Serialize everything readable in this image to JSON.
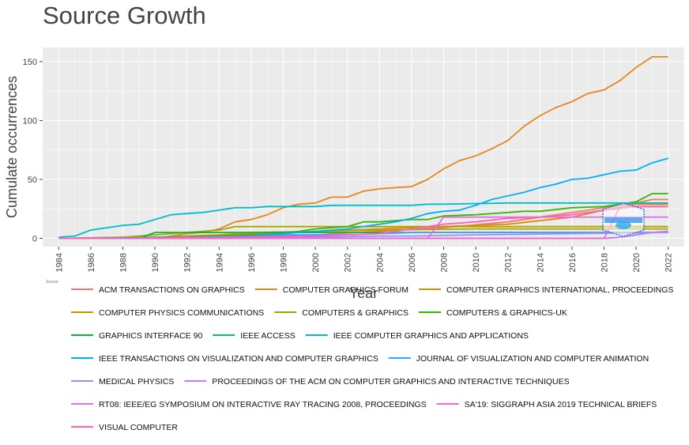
{
  "title": "Source Growth",
  "source_label": "Source",
  "chart_data": {
    "type": "line",
    "title": "Source Growth",
    "xlabel": "Year",
    "ylabel": "Cumulate occurrences",
    "xlim": [
      1983,
      2023
    ],
    "ylim": [
      -7,
      162
    ],
    "x_ticks": [
      "1984",
      "1986",
      "1988",
      "1990",
      "1992",
      "1994",
      "1996",
      "1998",
      "2000",
      "2002",
      "2004",
      "2006",
      "2008",
      "2010",
      "2012",
      "2014",
      "2016",
      "2018",
      "2020",
      "2022"
    ],
    "y_ticks": [
      "0",
      "50",
      "100",
      "150"
    ],
    "grid": true,
    "legend_position": "bottom",
    "series": [
      {
        "name": "ACM TRANSACTIONS ON GRAPHICS",
        "color": "#F8766D",
        "points": [
          [
            1984,
            0
          ],
          [
            1988,
            1
          ],
          [
            1992,
            1
          ],
          [
            1996,
            2
          ],
          [
            2000,
            3
          ],
          [
            2004,
            6
          ],
          [
            2008,
            9
          ],
          [
            2012,
            14
          ],
          [
            2016,
            22
          ],
          [
            2018,
            26
          ],
          [
            2020,
            30
          ],
          [
            2021,
            33
          ],
          [
            2022,
            33
          ]
        ]
      },
      {
        "name": "COMPUTER GRAPHICS FORUM",
        "color": "#E7861B",
        "points": [
          [
            1984,
            0
          ],
          [
            1988,
            0
          ],
          [
            1990,
            0
          ],
          [
            1991,
            2
          ],
          [
            1992,
            4
          ],
          [
            1993,
            5
          ],
          [
            1994,
            8
          ],
          [
            1995,
            14
          ],
          [
            1996,
            16
          ],
          [
            1997,
            20
          ],
          [
            1998,
            26
          ],
          [
            1999,
            29
          ],
          [
            2000,
            30
          ],
          [
            2001,
            35
          ],
          [
            2002,
            35
          ],
          [
            2003,
            40
          ],
          [
            2004,
            42
          ],
          [
            2005,
            43
          ],
          [
            2006,
            44
          ],
          [
            2007,
            50
          ],
          [
            2008,
            59
          ],
          [
            2009,
            66
          ],
          [
            2010,
            70
          ],
          [
            2011,
            76
          ],
          [
            2012,
            83
          ],
          [
            2013,
            95
          ],
          [
            2014,
            104
          ],
          [
            2015,
            111
          ],
          [
            2016,
            116
          ],
          [
            2017,
            123
          ],
          [
            2018,
            126
          ],
          [
            2019,
            134
          ],
          [
            2020,
            145
          ],
          [
            2021,
            154
          ],
          [
            2022,
            154
          ]
        ]
      },
      {
        "name": "COMPUTER GRAPHICS INTERNATIONAL, PROCEEDINGS",
        "color": "#DB8E00",
        "points": [
          [
            1984,
            0
          ],
          [
            1992,
            0
          ],
          [
            1993,
            0
          ],
          [
            1994,
            2
          ],
          [
            1996,
            4
          ],
          [
            2000,
            6
          ],
          [
            2004,
            8
          ],
          [
            2008,
            10
          ],
          [
            2012,
            12
          ],
          [
            2016,
            18
          ],
          [
            2018,
            24
          ],
          [
            2020,
            29
          ],
          [
            2022,
            29
          ]
        ]
      },
      {
        "name": "COMPUTER PHYSICS COMMUNICATIONS",
        "color": "#BE9C00",
        "points": [
          [
            1984,
            0
          ],
          [
            1990,
            1
          ],
          [
            1994,
            3
          ],
          [
            1996,
            5
          ],
          [
            2000,
            6
          ],
          [
            2004,
            7
          ],
          [
            2010,
            8
          ],
          [
            2022,
            8
          ]
        ]
      },
      {
        "name": "COMPUTERS & GRAPHICS",
        "color": "#A3A500",
        "points": [
          [
            1984,
            0
          ],
          [
            1988,
            1
          ],
          [
            1990,
            3
          ],
          [
            1992,
            5
          ],
          [
            1994,
            7
          ],
          [
            1995,
            10
          ],
          [
            1998,
            10
          ],
          [
            2004,
            10
          ],
          [
            2010,
            10
          ],
          [
            2016,
            10
          ],
          [
            2022,
            10
          ]
        ]
      },
      {
        "name": "COMPUTERS & GRAPHICS-UK",
        "color": "#39B600",
        "points": [
          [
            1984,
            0
          ],
          [
            1988,
            0
          ],
          [
            1990,
            1
          ],
          [
            1994,
            2
          ],
          [
            1998,
            4
          ],
          [
            2000,
            8
          ],
          [
            2002,
            10
          ],
          [
            2003,
            14
          ],
          [
            2004,
            14
          ],
          [
            2006,
            16
          ],
          [
            2007,
            16
          ],
          [
            2008,
            19
          ],
          [
            2010,
            20
          ],
          [
            2012,
            22
          ],
          [
            2013,
            23
          ],
          [
            2014,
            23
          ],
          [
            2016,
            26
          ],
          [
            2018,
            27
          ],
          [
            2019,
            29
          ],
          [
            2020,
            31
          ],
          [
            2021,
            38
          ],
          [
            2022,
            38
          ]
        ]
      },
      {
        "name": "GRAPHICS INTERFACE 90",
        "color": "#00BA38",
        "points": [
          [
            1984,
            0
          ],
          [
            1989,
            0
          ],
          [
            1990,
            5
          ],
          [
            1992,
            5
          ],
          [
            2000,
            5
          ],
          [
            2010,
            5
          ],
          [
            2022,
            5
          ]
        ]
      },
      {
        "name": "IEEE ACCESS",
        "color": "#00BF7D",
        "points": [
          [
            1984,
            0
          ],
          [
            2016,
            0
          ],
          [
            2017,
            0
          ],
          [
            2018,
            0
          ],
          [
            2019,
            1
          ],
          [
            2020,
            3
          ],
          [
            2021,
            5
          ],
          [
            2022,
            6
          ]
        ]
      },
      {
        "name": "IEEE COMPUTER GRAPHICS AND APPLICATIONS",
        "color": "#00BFC4",
        "points": [
          [
            1984,
            1
          ],
          [
            1985,
            2
          ],
          [
            1986,
            7
          ],
          [
            1987,
            9
          ],
          [
            1988,
            11
          ],
          [
            1989,
            12
          ],
          [
            1990,
            16
          ],
          [
            1991,
            20
          ],
          [
            1992,
            21
          ],
          [
            1993,
            22
          ],
          [
            1994,
            24
          ],
          [
            1995,
            26
          ],
          [
            1996,
            26
          ],
          [
            1997,
            27
          ],
          [
            1998,
            27
          ],
          [
            1999,
            27
          ],
          [
            2000,
            27
          ],
          [
            2001,
            28
          ],
          [
            2002,
            28
          ],
          [
            2006,
            28
          ],
          [
            2007,
            29
          ],
          [
            2008,
            29
          ],
          [
            2012,
            30
          ],
          [
            2016,
            30
          ],
          [
            2020,
            30
          ],
          [
            2022,
            30
          ]
        ]
      },
      {
        "name": "IEEE TRANSACTIONS ON VISUALIZATION AND COMPUTER GRAPHICS",
        "color": "#00B0F6",
        "points": [
          [
            1984,
            0
          ],
          [
            1992,
            1
          ],
          [
            1996,
            2
          ],
          [
            1998,
            4
          ],
          [
            2000,
            6
          ],
          [
            2002,
            8
          ],
          [
            2004,
            12
          ],
          [
            2005,
            14
          ],
          [
            2006,
            17
          ],
          [
            2007,
            21
          ],
          [
            2008,
            23
          ],
          [
            2009,
            24
          ],
          [
            2010,
            28
          ],
          [
            2011,
            33
          ],
          [
            2012,
            36
          ],
          [
            2013,
            39
          ],
          [
            2014,
            43
          ],
          [
            2015,
            46
          ],
          [
            2016,
            50
          ],
          [
            2017,
            51
          ],
          [
            2018,
            54
          ],
          [
            2019,
            57
          ],
          [
            2020,
            58
          ],
          [
            2021,
            64
          ],
          [
            2022,
            68
          ]
        ]
      },
      {
        "name": "JOURNAL OF VISUALIZATION AND COMPUTER ANIMATION",
        "color": "#35A2FF",
        "points": [
          [
            1984,
            0
          ],
          [
            1990,
            0
          ],
          [
            1994,
            1
          ],
          [
            1998,
            3
          ],
          [
            2000,
            3
          ],
          [
            2002,
            3
          ],
          [
            2004,
            4
          ],
          [
            2006,
            5
          ],
          [
            2010,
            5
          ],
          [
            2016,
            5
          ],
          [
            2022,
            5
          ]
        ]
      },
      {
        "name": "MEDICAL PHYSICS",
        "color": "#9590FF",
        "points": [
          [
            1984,
            0
          ],
          [
            1996,
            0
          ],
          [
            2004,
            2
          ],
          [
            2006,
            2
          ],
          [
            2010,
            3
          ],
          [
            2016,
            4
          ],
          [
            2022,
            5
          ]
        ]
      },
      {
        "name": "PROCEEDINGS OF THE ACM ON COMPUTER GRAPHICS AND INTERACTIVE TECHNIQUES",
        "color": "#C77CFF",
        "points": [
          [
            1984,
            0
          ],
          [
            2010,
            0
          ],
          [
            2016,
            0
          ],
          [
            2017,
            0
          ],
          [
            2018,
            0
          ],
          [
            2019,
            1
          ],
          [
            2020,
            3
          ],
          [
            2021,
            5
          ],
          [
            2022,
            6
          ]
        ]
      },
      {
        "name": "RT08: IEEE/EG SYMPOSIUM ON INTERACTIVE RAY TRACING 2008, PROCEEDINGS",
        "color": "#E76BF3",
        "points": [
          [
            1984,
            0
          ],
          [
            2006,
            0
          ],
          [
            2007,
            0
          ],
          [
            2008,
            18
          ],
          [
            2010,
            18
          ],
          [
            2016,
            18
          ],
          [
            2022,
            18
          ]
        ]
      },
      {
        "name": "SA'19: SIGGRAPH ASIA 2019 TECHNICAL BRIEFS",
        "color": "#FA62DB",
        "points": [
          [
            1984,
            0
          ],
          [
            2016,
            0
          ],
          [
            2018,
            0
          ],
          [
            2019,
            27
          ],
          [
            2022,
            27
          ]
        ]
      },
      {
        "name": "VISUAL COMPUTER",
        "color": "#FF62BC",
        "points": [
          [
            1984,
            0
          ],
          [
            1988,
            0
          ],
          [
            1992,
            1
          ],
          [
            1996,
            1
          ],
          [
            2000,
            2
          ],
          [
            2004,
            4
          ],
          [
            2008,
            12
          ],
          [
            2010,
            14
          ],
          [
            2012,
            17
          ],
          [
            2014,
            18
          ],
          [
            2016,
            20
          ],
          [
            2018,
            24
          ],
          [
            2020,
            27
          ],
          [
            2022,
            27
          ]
        ]
      }
    ]
  }
}
